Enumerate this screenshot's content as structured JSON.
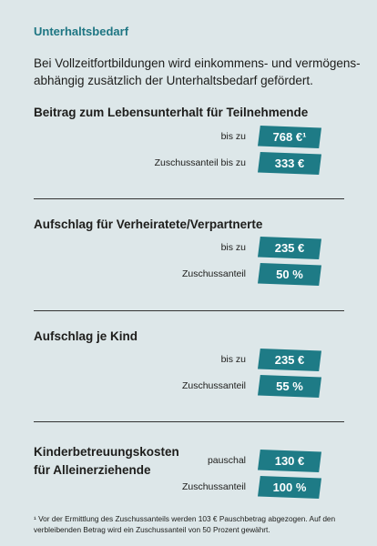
{
  "header": {
    "title": "Unterhaltsbedarf",
    "intro": [
      "Bei Vollzeitfortbildungen wird einkommens- und vermögens-",
      "abhängig zusätzlich der Unterhaltsbedarf gefördert."
    ]
  },
  "sections": [
    {
      "heading": [
        "Beitrag zum Lebensunterhalt für Teilnehmende"
      ],
      "rows": [
        {
          "label": "bis zu",
          "value": "768 €¹"
        },
        {
          "label": "Zuschussanteil bis zu",
          "value": "333 €"
        }
      ]
    },
    {
      "heading": [
        "Aufschlag für Verheiratete/Verpartnerte"
      ],
      "rows": [
        {
          "label": "bis zu",
          "value": "235 €"
        },
        {
          "label": "Zuschussanteil",
          "value": "50 %"
        }
      ]
    },
    {
      "heading": [
        "Aufschlag je Kind"
      ],
      "rows": [
        {
          "label": "bis zu",
          "value": "235 €"
        },
        {
          "label": "Zuschussanteil",
          "value": "55 %"
        }
      ]
    },
    {
      "heading": [
        "Kinderbetreuungskosten",
        "für Alleinerziehende"
      ],
      "rows": [
        {
          "label": "pauschal",
          "value": "130 €"
        },
        {
          "label": "Zuschussanteil",
          "value": "100 %"
        }
      ]
    }
  ],
  "footnote": [
    "¹ Vor der Ermittlung des Zuschussanteils werden 103 € Pauschbetrag abgezogen. Auf den",
    "verbleibenden Betrag wird ein Zuschussanteil von 50 Prozent gewährt."
  ]
}
